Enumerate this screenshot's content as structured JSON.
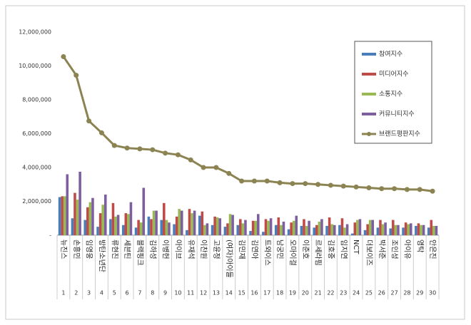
{
  "chart_data": {
    "type": "bar",
    "categories": [
      "뉴진스",
      "손흥민",
      "임영웅",
      "방탄소년단",
      "류현진",
      "세븐틴",
      "블랙핑크",
      "김하성",
      "이병헌",
      "아이브",
      "유재석",
      "이찬원",
      "고윤정",
      "(여자)아이들",
      "김민재",
      "김연아",
      "트와이스",
      "남궁민",
      "오마이걸",
      "이준호",
      "르세라핌",
      "김호중",
      "임지연",
      "NCT",
      "더보이즈",
      "박서준",
      "조인성",
      "아이유",
      "영탁",
      "안은진"
    ],
    "ranks": [
      1,
      2,
      3,
      4,
      5,
      6,
      7,
      8,
      9,
      10,
      11,
      12,
      13,
      14,
      15,
      16,
      17,
      18,
      19,
      20,
      21,
      22,
      23,
      24,
      25,
      26,
      27,
      28,
      29,
      30
    ],
    "ylim": [
      0,
      12000000
    ],
    "yticks": [
      {
        "value": 0,
        "label": "-"
      },
      {
        "value": 2000000,
        "label": "2,000,000"
      },
      {
        "value": 4000000,
        "label": "4,000,000"
      },
      {
        "value": 6000000,
        "label": "6,000,000"
      },
      {
        "value": 8000000,
        "label": "8,000,000"
      },
      {
        "value": 10000000,
        "label": "10,000,000"
      },
      {
        "value": 12000000,
        "label": "12,000,000"
      }
    ],
    "grid": false,
    "legend": "right-top",
    "series": [
      {
        "name": "참여지수",
        "color": "#4a7ebb",
        "type": "bar",
        "values": [
          2250000,
          1000000,
          900000,
          500000,
          950000,
          600000,
          450000,
          1100000,
          900000,
          650000,
          300000,
          1150000,
          600000,
          500000,
          600000,
          250000,
          200000,
          600000,
          350000,
          550000,
          450000,
          550000,
          600000,
          100000,
          300000,
          450000,
          400000,
          450000,
          550000,
          450000
        ]
      },
      {
        "name": "미디어지수",
        "color": "#be4b48",
        "type": "bar",
        "values": [
          2300000,
          2500000,
          1650000,
          1300000,
          1900000,
          1300000,
          900000,
          950000,
          1900000,
          1100000,
          1550000,
          1400000,
          1100000,
          700000,
          950000,
          850000,
          950000,
          1050000,
          750000,
          950000,
          600000,
          1050000,
          1000000,
          750000,
          650000,
          900000,
          900000,
          750000,
          700000,
          900000
        ]
      },
      {
        "name": "소통지수",
        "color": "#98b954",
        "type": "bar",
        "values": [
          2300000,
          2100000,
          1950000,
          1800000,
          1100000,
          1250000,
          750000,
          1450000,
          900000,
          1550000,
          1300000,
          600000,
          1050000,
          1250000,
          700000,
          850000,
          850000,
          600000,
          850000,
          550000,
          800000,
          650000,
          450000,
          900000,
          900000,
          650000,
          600000,
          650000,
          600000,
          550000
        ]
      },
      {
        "name": "커뮤니티지수",
        "color": "#7d5fa0",
        "type": "bar",
        "values": [
          3600000,
          3750000,
          2200000,
          2400000,
          1200000,
          1950000,
          2800000,
          1450000,
          750000,
          1450000,
          1450000,
          700000,
          1000000,
          1200000,
          900000,
          1250000,
          1000000,
          800000,
          1150000,
          850000,
          950000,
          600000,
          650000,
          950000,
          900000,
          750000,
          600000,
          700000,
          600000,
          550000
        ]
      },
      {
        "name": "브랜드평판지수",
        "color": "#8c8352",
        "type": "line",
        "values": [
          10550000,
          9450000,
          6750000,
          6050000,
          5300000,
          5150000,
          5100000,
          5050000,
          4850000,
          4750000,
          4450000,
          4000000,
          4000000,
          3650000,
          3200000,
          3200000,
          3200000,
          3100000,
          3050000,
          3050000,
          3000000,
          2950000,
          2900000,
          2850000,
          2800000,
          2750000,
          2750000,
          2700000,
          2700000,
          2600000
        ]
      }
    ]
  }
}
